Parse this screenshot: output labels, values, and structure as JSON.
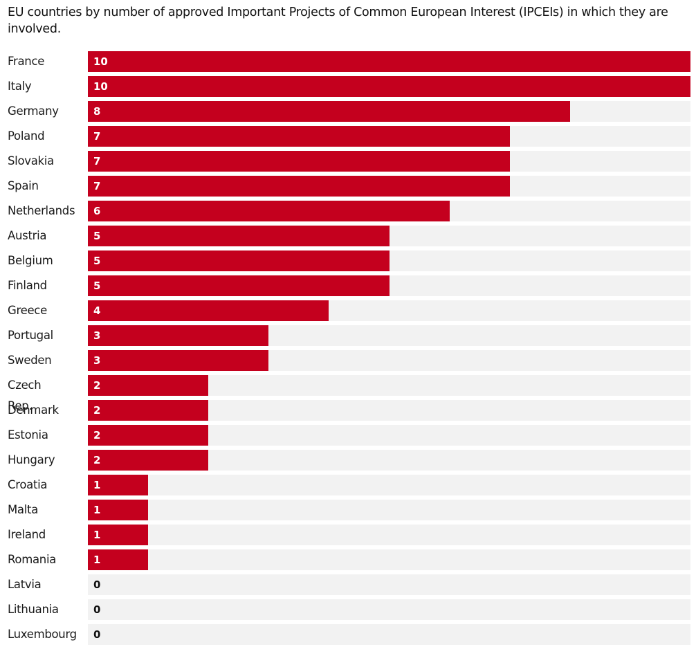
{
  "chart_data": {
    "type": "bar",
    "orientation": "horizontal",
    "title": "EU countries by number of approved Important Projects of Common European Interest (IPCEIs) in which they are involved.",
    "xlabel": "",
    "ylabel": "",
    "xlim": [
      0,
      10
    ],
    "grid": false,
    "legend": "none",
    "bar_color": "#c4001e",
    "track_color": "#f2f2f2",
    "categories": [
      "France",
      "Italy",
      "Germany",
      "Poland",
      "Slovakia",
      "Spain",
      "Netherlands",
      "Austria",
      "Belgium",
      "Finland",
      "Greece",
      "Portugal",
      "Sweden",
      "Czech Rep.",
      "Denmark",
      "Estonia",
      "Hungary",
      "Croatia",
      "Malta",
      "Ireland",
      "Romania",
      "Latvia",
      "Lithuania",
      "Luxembourg"
    ],
    "values": [
      10,
      10,
      8,
      7,
      7,
      7,
      6,
      5,
      5,
      5,
      4,
      3,
      3,
      2,
      2,
      2,
      2,
      1,
      1,
      1,
      1,
      0,
      0,
      0
    ]
  }
}
